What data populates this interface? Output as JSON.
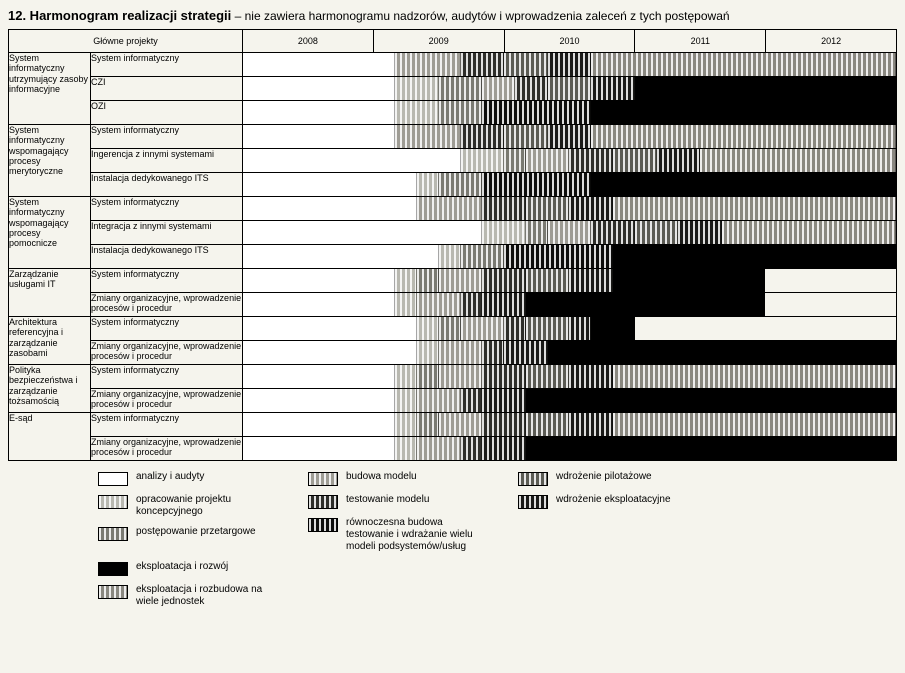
{
  "title_main": "12. Harmonogram realizacji strategii",
  "title_sub": " – nie zawiera harmonogramu nadzorów, audytów i wprowadzenia zaleceń z tych postępowań",
  "header_projects": "Główne projekty",
  "years": [
    "2008",
    "2009",
    "2010",
    "2011",
    "2012"
  ],
  "total_units": 60,
  "phase_colors": {
    "p1": {
      "name": "analizy i audyty",
      "color": "#ffffff",
      "stripe": true
    },
    "p2": {
      "name": "opracowanie projektu koncepcyjnego",
      "color": "#b8b8b0",
      "stripe": true
    },
    "p3": {
      "name": "postępowanie przetargowe",
      "color": "#7a7a72",
      "stripe": true
    },
    "p4": {
      "name": "budowa modelu",
      "color": "#9e9c94",
      "stripe": true
    },
    "p5": {
      "name": "testowanie modelu",
      "color": "#2e2e2a",
      "stripe": true
    },
    "p6": {
      "name": "równoczesna budowa testowanie i wdrażanie wielu modeli podsystemów/usług",
      "color": "#0d0d0c",
      "stripe": true
    },
    "p7": {
      "name": "wdrożenie pilotażowe",
      "color": "#5b5b54",
      "stripe": true
    },
    "p8": {
      "name": "wdrożenie eksploatacyjne",
      "color": "#1a1a18",
      "stripe": true
    },
    "p9": {
      "name": "eksploatacja i rozwój",
      "color": "#000000",
      "stripe": false
    },
    "p10": {
      "name": "eksploatacja i rozbudowa na wiele jednostek",
      "color": "#8a8880",
      "stripe": true
    }
  },
  "categories": [
    {
      "name": "System informatyczny utrzymujący zasoby informacyjne",
      "rows": [
        {
          "label": "System informatyczny",
          "segs": [
            [
              "p1",
              14
            ],
            [
              "p4",
              6
            ],
            [
              "p5",
              4
            ],
            [
              "p7",
              4
            ],
            [
              "p8",
              4
            ],
            [
              "p10",
              28
            ]
          ]
        },
        {
          "label": "CZI",
          "segs": [
            [
              "p1",
              14
            ],
            [
              "p2",
              4
            ],
            [
              "p3",
              4
            ],
            [
              "p4",
              3
            ],
            [
              "p5",
              3
            ],
            [
              "p7",
              4
            ],
            [
              "p8",
              4
            ],
            [
              "p9",
              24
            ]
          ]
        },
        {
          "label": "OZI",
          "segs": [
            [
              "p1",
              14
            ],
            [
              "p2",
              4
            ],
            [
              "p3",
              4
            ],
            [
              "p6",
              10
            ],
            [
              "p9",
              28
            ]
          ]
        }
      ]
    },
    {
      "name": "System informatyczny wspomagający procesy merytoryczne",
      "rows": [
        {
          "label": "System informatyczny",
          "segs": [
            [
              "p1",
              14
            ],
            [
              "p4",
              6
            ],
            [
              "p5",
              4
            ],
            [
              "p7",
              4
            ],
            [
              "p8",
              4
            ],
            [
              "p10",
              28
            ]
          ]
        },
        {
          "label": "Ingerencja z innymi systemami",
          "segs": [
            [
              "p1",
              20
            ],
            [
              "p2",
              4
            ],
            [
              "p3",
              2
            ],
            [
              "p4",
              4
            ],
            [
              "p5",
              4
            ],
            [
              "p7",
              4
            ],
            [
              "p8",
              4
            ],
            [
              "p10",
              18
            ]
          ]
        },
        {
          "label": "Instalacja dedykowanego ITS",
          "segs": [
            [
              "p1",
              16
            ],
            [
              "p2",
              2
            ],
            [
              "p3",
              4
            ],
            [
              "p6",
              10
            ],
            [
              "p9",
              28
            ]
          ]
        }
      ]
    },
    {
      "name": "System informatyczny wspomagający procesy pomocnicze",
      "rows": [
        {
          "label": "System informatyczny",
          "segs": [
            [
              "p1",
              16
            ],
            [
              "p4",
              6
            ],
            [
              "p5",
              4
            ],
            [
              "p7",
              4
            ],
            [
              "p8",
              4
            ],
            [
              "p10",
              26
            ]
          ]
        },
        {
          "label": "Integracja z innymi systemami",
          "segs": [
            [
              "p1",
              22
            ],
            [
              "p2",
              4
            ],
            [
              "p3",
              2
            ],
            [
              "p4",
              4
            ],
            [
              "p5",
              4
            ],
            [
              "p7",
              4
            ],
            [
              "p8",
              4
            ],
            [
              "p10",
              16
            ]
          ]
        },
        {
          "label": "Instalacja dedykowanego ITS",
          "segs": [
            [
              "p1",
              18
            ],
            [
              "p2",
              2
            ],
            [
              "p3",
              4
            ],
            [
              "p6",
              10
            ],
            [
              "p9",
              26
            ]
          ]
        }
      ]
    },
    {
      "name": "Zarządzanie usługami IT",
      "rows": [
        {
          "label": "System informatyczny",
          "segs": [
            [
              "p1",
              14
            ],
            [
              "p2",
              2
            ],
            [
              "p3",
              2
            ],
            [
              "p4",
              4
            ],
            [
              "p5",
              4
            ],
            [
              "p7",
              4
            ],
            [
              "p8",
              4
            ],
            [
              "p9",
              14
            ],
            [
              "",
              12
            ]
          ]
        },
        {
          "label": "Zmiany organizacyjne, wprowadzenie procesów i procedur",
          "segs": [
            [
              "p1",
              14
            ],
            [
              "p2",
              2
            ],
            [
              "p4",
              4
            ],
            [
              "p5",
              2
            ],
            [
              "p8",
              4
            ],
            [
              "p9",
              22
            ],
            [
              "",
              12
            ]
          ]
        }
      ]
    },
    {
      "name": "Architektura referencyjna i zarządzanie zasobami",
      "rows": [
        {
          "label": "System informatyczny",
          "segs": [
            [
              "p1",
              16
            ],
            [
              "p2",
              2
            ],
            [
              "p3",
              2
            ],
            [
              "p4",
              4
            ],
            [
              "p5",
              2
            ],
            [
              "p7",
              4
            ],
            [
              "p8",
              2
            ],
            [
              "p9",
              4
            ],
            [
              "",
              24
            ]
          ]
        },
        {
          "label": "Zmiany organizacyjne, wprowadzenie procesów i procedur",
          "segs": [
            [
              "p1",
              16
            ],
            [
              "p2",
              2
            ],
            [
              "p4",
              4
            ],
            [
              "p5",
              2
            ],
            [
              "p8",
              4
            ],
            [
              "p9",
              32
            ]
          ]
        }
      ]
    },
    {
      "name": "Polityka bezpieczeństwa i zarządzanie tożsamością",
      "rows": [
        {
          "label": "System informatyczny",
          "segs": [
            [
              "p1",
              14
            ],
            [
              "p2",
              2
            ],
            [
              "p3",
              2
            ],
            [
              "p4",
              4
            ],
            [
              "p5",
              4
            ],
            [
              "p7",
              4
            ],
            [
              "p8",
              4
            ],
            [
              "p10",
              26
            ]
          ]
        },
        {
          "label": "Zmiany organizacyjne, wprowadzenie procesów i procedur",
          "segs": [
            [
              "p1",
              14
            ],
            [
              "p2",
              2
            ],
            [
              "p4",
              4
            ],
            [
              "p5",
              2
            ],
            [
              "p8",
              4
            ],
            [
              "p9",
              34
            ]
          ]
        }
      ]
    },
    {
      "name": "E-sąd",
      "rows": [
        {
          "label": "System informatyczny",
          "segs": [
            [
              "p1",
              14
            ],
            [
              "p2",
              2
            ],
            [
              "p3",
              2
            ],
            [
              "p4",
              4
            ],
            [
              "p5",
              4
            ],
            [
              "p7",
              4
            ],
            [
              "p8",
              4
            ],
            [
              "p10",
              26
            ]
          ]
        },
        {
          "label": "Zmiany organizacyjne, wprowadzenie procesów i procedur",
          "segs": [
            [
              "p1",
              14
            ],
            [
              "p2",
              2
            ],
            [
              "p4",
              4
            ],
            [
              "p5",
              2
            ],
            [
              "p8",
              4
            ],
            [
              "p9",
              34
            ]
          ]
        }
      ]
    }
  ],
  "legend_layout": [
    [
      "p1",
      "p2",
      "p3"
    ],
    [
      "p4",
      "p5",
      "p6"
    ],
    [
      "p7",
      "p8"
    ],
    [
      "p9",
      "p10"
    ]
  ]
}
